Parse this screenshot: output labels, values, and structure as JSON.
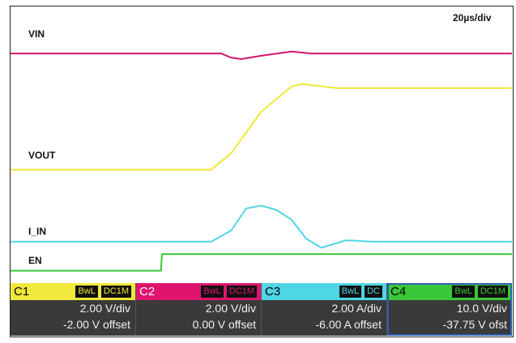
{
  "chart_data": {
    "type": "line",
    "title": "",
    "timebase": "20µs/div",
    "grid": false,
    "series": [
      {
        "name": "VIN",
        "color": "#d6146e",
        "shape": [
          [
            0,
            0.17
          ],
          [
            0.42,
            0.17
          ],
          [
            0.44,
            0.185
          ],
          [
            0.46,
            0.19
          ],
          [
            0.5,
            0.178
          ],
          [
            0.56,
            0.163
          ],
          [
            0.6,
            0.17
          ],
          [
            1,
            0.17
          ]
        ]
      },
      {
        "name": "VOUT",
        "color": "#f0e83a",
        "shape": [
          [
            0,
            0.59
          ],
          [
            0.4,
            0.59
          ],
          [
            0.44,
            0.53
          ],
          [
            0.5,
            0.38
          ],
          [
            0.56,
            0.29
          ],
          [
            0.58,
            0.28
          ],
          [
            0.65,
            0.295
          ],
          [
            1,
            0.295
          ]
        ]
      },
      {
        "name": "I_IN",
        "color": "#4fd6e6",
        "shape": [
          [
            0,
            0.85
          ],
          [
            0.4,
            0.85
          ],
          [
            0.44,
            0.81
          ],
          [
            0.47,
            0.73
          ],
          [
            0.5,
            0.72
          ],
          [
            0.53,
            0.735
          ],
          [
            0.56,
            0.77
          ],
          [
            0.59,
            0.84
          ],
          [
            0.62,
            0.872
          ],
          [
            0.67,
            0.845
          ],
          [
            0.72,
            0.85
          ],
          [
            1,
            0.85
          ]
        ]
      },
      {
        "name": "EN",
        "color": "#39c83a",
        "shape": [
          [
            0,
            0.955
          ],
          [
            0.3,
            0.955
          ],
          [
            0.302,
            0.895
          ],
          [
            1,
            0.895
          ]
        ]
      }
    ]
  },
  "channels": [
    {
      "name": "C1",
      "color": "#f0e83a",
      "bw": "BwL",
      "coupling": "DC1M",
      "scale": "2.00 V/div",
      "offset": "-2.00 V offset"
    },
    {
      "name": "C2",
      "color": "#e0146e",
      "bw": "BwL",
      "coupling": "DC1M",
      "scale": "2.00 V/div",
      "offset": "0.00 V offset"
    },
    {
      "name": "C3",
      "color": "#4fd6e6",
      "bw": "BwL",
      "coupling": "DC",
      "scale": "2.00 A/div",
      "offset": "-6.00 A offset"
    },
    {
      "name": "C4",
      "color": "#39c83a",
      "bw": "BwL",
      "coupling": "DC1M",
      "scale": "10.0 V/div",
      "offset": "-37.75 V ofst"
    }
  ]
}
